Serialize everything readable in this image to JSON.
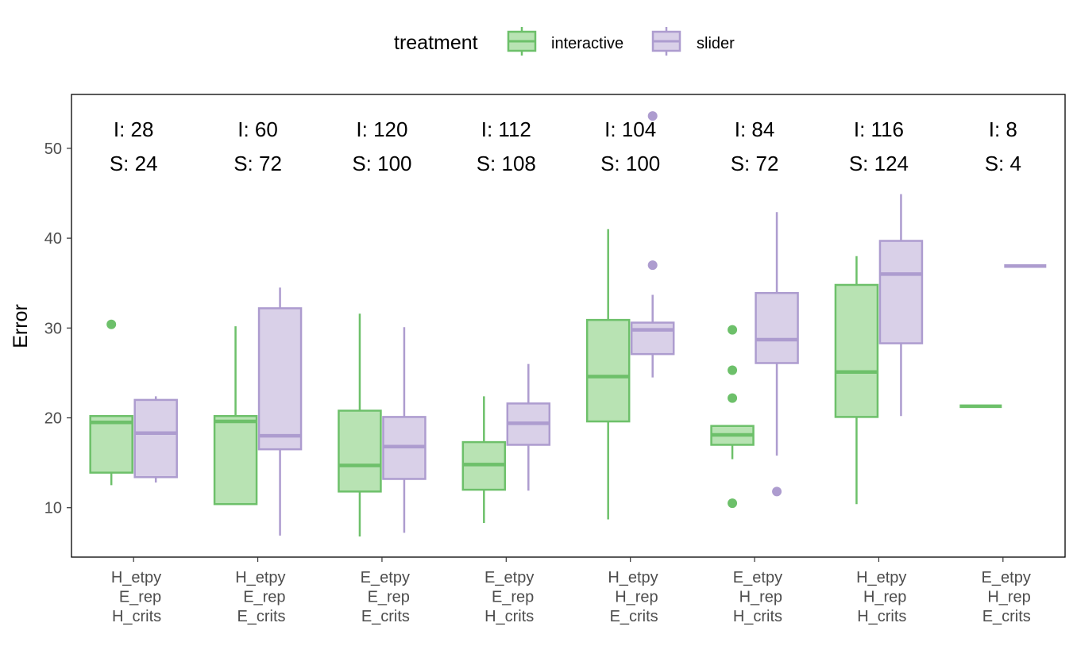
{
  "legend": {
    "title": "treatment",
    "items": [
      {
        "name": "interactive",
        "fill": "#b8e3b3",
        "stroke": "#6dc06a"
      },
      {
        "name": "slider",
        "fill": "#d9d0e8",
        "stroke": "#ad9ccf"
      }
    ]
  },
  "chart_data": {
    "type": "boxplot",
    "ylabel": "Error",
    "ylim": [
      4.5,
      56
    ],
    "yticks": [
      10,
      20,
      30,
      40,
      50
    ],
    "grid": false,
    "legend_position": "top",
    "categories": [
      [
        "H_etpy",
        "E_rep",
        "H_crits"
      ],
      [
        "H_etpy",
        "E_rep",
        "E_crits"
      ],
      [
        "E_etpy",
        "E_rep",
        "E_crits"
      ],
      [
        "E_etpy",
        "E_rep",
        "H_crits"
      ],
      [
        "H_etpy",
        "H_rep",
        "E_crits"
      ],
      [
        "E_etpy",
        "H_rep",
        "H_crits"
      ],
      [
        "H_etpy",
        "H_rep",
        "H_crits"
      ],
      [
        "E_etpy",
        "H_rep",
        "E_crits"
      ]
    ],
    "counts": [
      {
        "interactive": "I: 28",
        "slider": "S: 24"
      },
      {
        "interactive": "I: 60",
        "slider": "S: 72"
      },
      {
        "interactive": "I: 120",
        "slider": "S: 100"
      },
      {
        "interactive": "I: 112",
        "slider": "S: 108"
      },
      {
        "interactive": "I: 104",
        "slider": "S: 100"
      },
      {
        "interactive": "I: 84",
        "slider": "S: 72"
      },
      {
        "interactive": "I: 116",
        "slider": "S: 124"
      },
      {
        "interactive": "I: 8",
        "slider": "S: 4"
      }
    ],
    "series": [
      {
        "name": "interactive",
        "boxes": [
          {
            "min": 12.5,
            "q1": 13.9,
            "median": 19.5,
            "q3": 20.2,
            "max": 20.2,
            "outliers": [
              30.4
            ]
          },
          {
            "min": 10.4,
            "q1": 10.4,
            "median": 19.6,
            "q3": 20.2,
            "max": 30.2,
            "outliers": []
          },
          {
            "min": 6.8,
            "q1": 11.8,
            "median": 14.7,
            "q3": 20.8,
            "max": 31.6,
            "outliers": []
          },
          {
            "min": 8.3,
            "q1": 12.0,
            "median": 14.8,
            "q3": 17.3,
            "max": 22.4,
            "outliers": []
          },
          {
            "min": 8.7,
            "q1": 19.6,
            "median": 24.6,
            "q3": 30.9,
            "max": 41.0,
            "outliers": []
          },
          {
            "min": 15.4,
            "q1": 17.0,
            "median": 18.1,
            "q3": 19.1,
            "max": 19.1,
            "outliers": [
              10.5,
              22.2,
              25.3,
              29.8
            ]
          },
          {
            "min": 10.4,
            "q1": 20.1,
            "median": 25.1,
            "q3": 34.8,
            "max": 38.0,
            "outliers": []
          },
          {
            "min": 21.3,
            "q1": 21.3,
            "median": 21.3,
            "q3": 21.3,
            "max": 21.3,
            "outliers": []
          }
        ]
      },
      {
        "name": "slider",
        "boxes": [
          {
            "min": 12.8,
            "q1": 13.4,
            "median": 18.3,
            "q3": 22.0,
            "max": 22.4,
            "outliers": []
          },
          {
            "min": 6.9,
            "q1": 16.5,
            "median": 18.0,
            "q3": 32.2,
            "max": 34.5,
            "outliers": []
          },
          {
            "min": 7.2,
            "q1": 13.2,
            "median": 16.8,
            "q3": 20.1,
            "max": 30.1,
            "outliers": []
          },
          {
            "min": 11.9,
            "q1": 17.0,
            "median": 19.4,
            "q3": 21.6,
            "max": 26.0,
            "outliers": []
          },
          {
            "min": 24.5,
            "q1": 27.1,
            "median": 29.8,
            "q3": 30.6,
            "max": 33.7,
            "outliers": [
              37.0,
              53.6
            ]
          },
          {
            "min": 15.8,
            "q1": 26.1,
            "median": 28.7,
            "q3": 33.9,
            "max": 42.9,
            "outliers": [
              11.8
            ]
          },
          {
            "min": 20.2,
            "q1": 28.3,
            "median": 36.0,
            "q3": 39.7,
            "max": 44.9,
            "outliers": []
          },
          {
            "min": 36.9,
            "q1": 36.9,
            "median": 36.9,
            "q3": 36.9,
            "max": 36.9,
            "outliers": []
          }
        ]
      }
    ]
  }
}
